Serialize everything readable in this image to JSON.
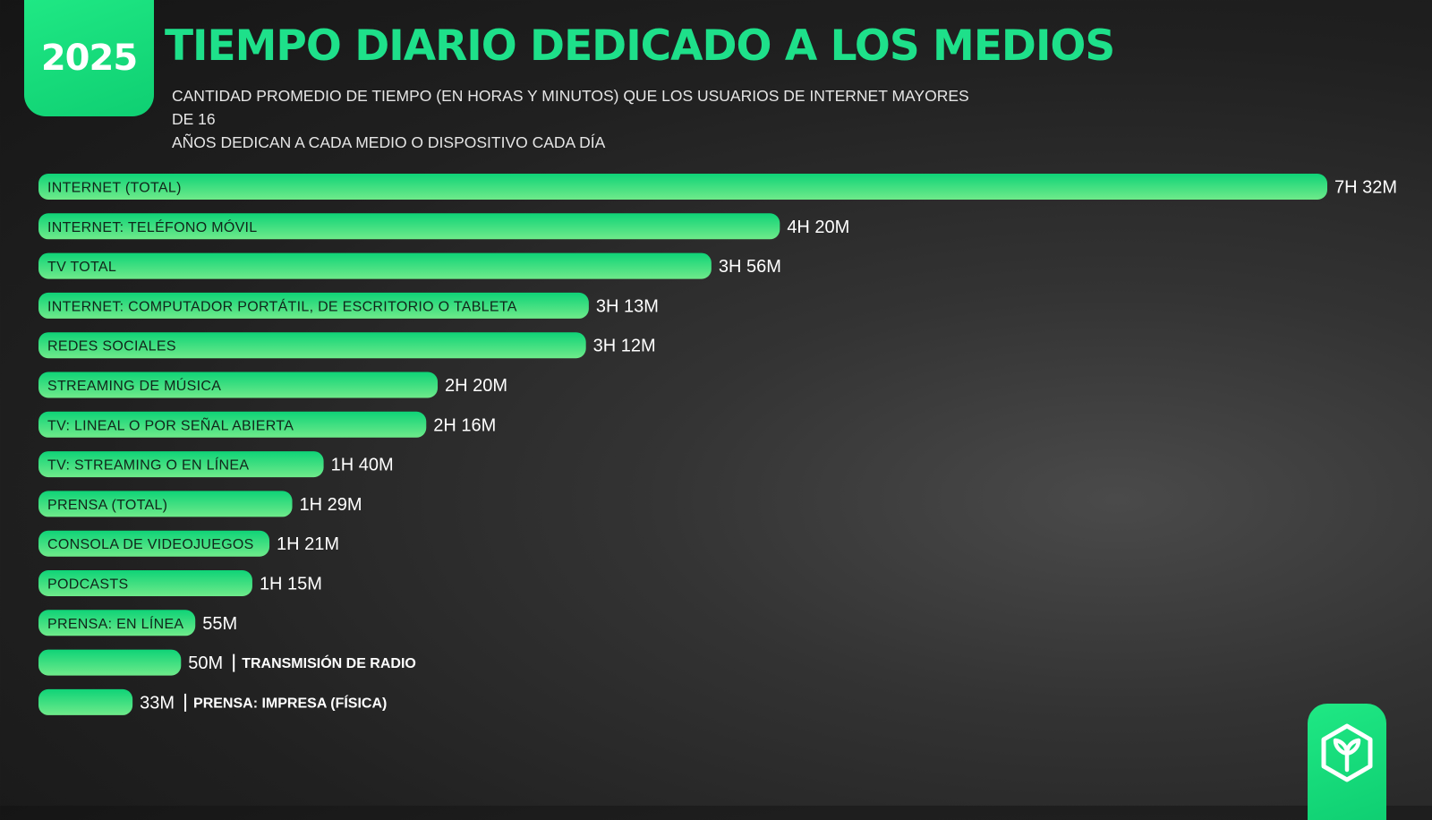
{
  "badge": {
    "year": "2025"
  },
  "header": {
    "title": "TIEMPO DIARIO DEDICADO A LOS MEDIOS",
    "subtitle_line1": "CANTIDAD PROMEDIO DE TIEMPO (EN HORAS Y MINUTOS) QUE LOS USUARIOS DE INTERNET MAYORES DE 16",
    "subtitle_line2": "AÑOS DEDICAN A CADA MEDIO O DISPOSITIVO CADA DÍA"
  },
  "colors": {
    "accent": "#1ee08a",
    "bar_start": "#0fd377",
    "bar_end": "#6fea8a"
  },
  "logo": {
    "icon": "hexagon-sprout-icon"
  },
  "chart_data": {
    "type": "bar",
    "orientation": "horizontal",
    "unit": "minutes",
    "categories": [
      "INTERNET (TOTAL)",
      "INTERNET: TELÉFONO MÓVIL",
      "TV TOTAL",
      "INTERNET: COMPUTADOR PORTÁTIL, DE ESCRITORIO O TABLETA",
      "REDES SOCIALES",
      "STREAMING DE MÚSICA",
      "TV: LINEAL O POR SEÑAL ABIERTA",
      "TV: STREAMING O EN LÍNEA",
      "PRENSA (TOTAL)",
      "CONSOLA DE VIDEOJUEGOS",
      "PODCASTS",
      "PRENSA: EN LÍNEA",
      "TRANSMISIÓN DE RADIO",
      "PRENSA: IMPRESA (FÍSICA)"
    ],
    "values": [
      452,
      260,
      236,
      193,
      192,
      140,
      136,
      100,
      89,
      81,
      75,
      55,
      50,
      33
    ],
    "value_labels": [
      "7H 32M",
      "4H 20M",
      "3H 56M",
      "3H 13M",
      "3H 12M",
      "2H 20M",
      "2H 16M",
      "1H 40M",
      "1H 29M",
      "1H 21M",
      "1H 15M",
      "55M",
      "50M",
      "33M"
    ],
    "label_outside": [
      false,
      false,
      false,
      false,
      false,
      false,
      false,
      false,
      false,
      false,
      false,
      false,
      true,
      true
    ]
  }
}
